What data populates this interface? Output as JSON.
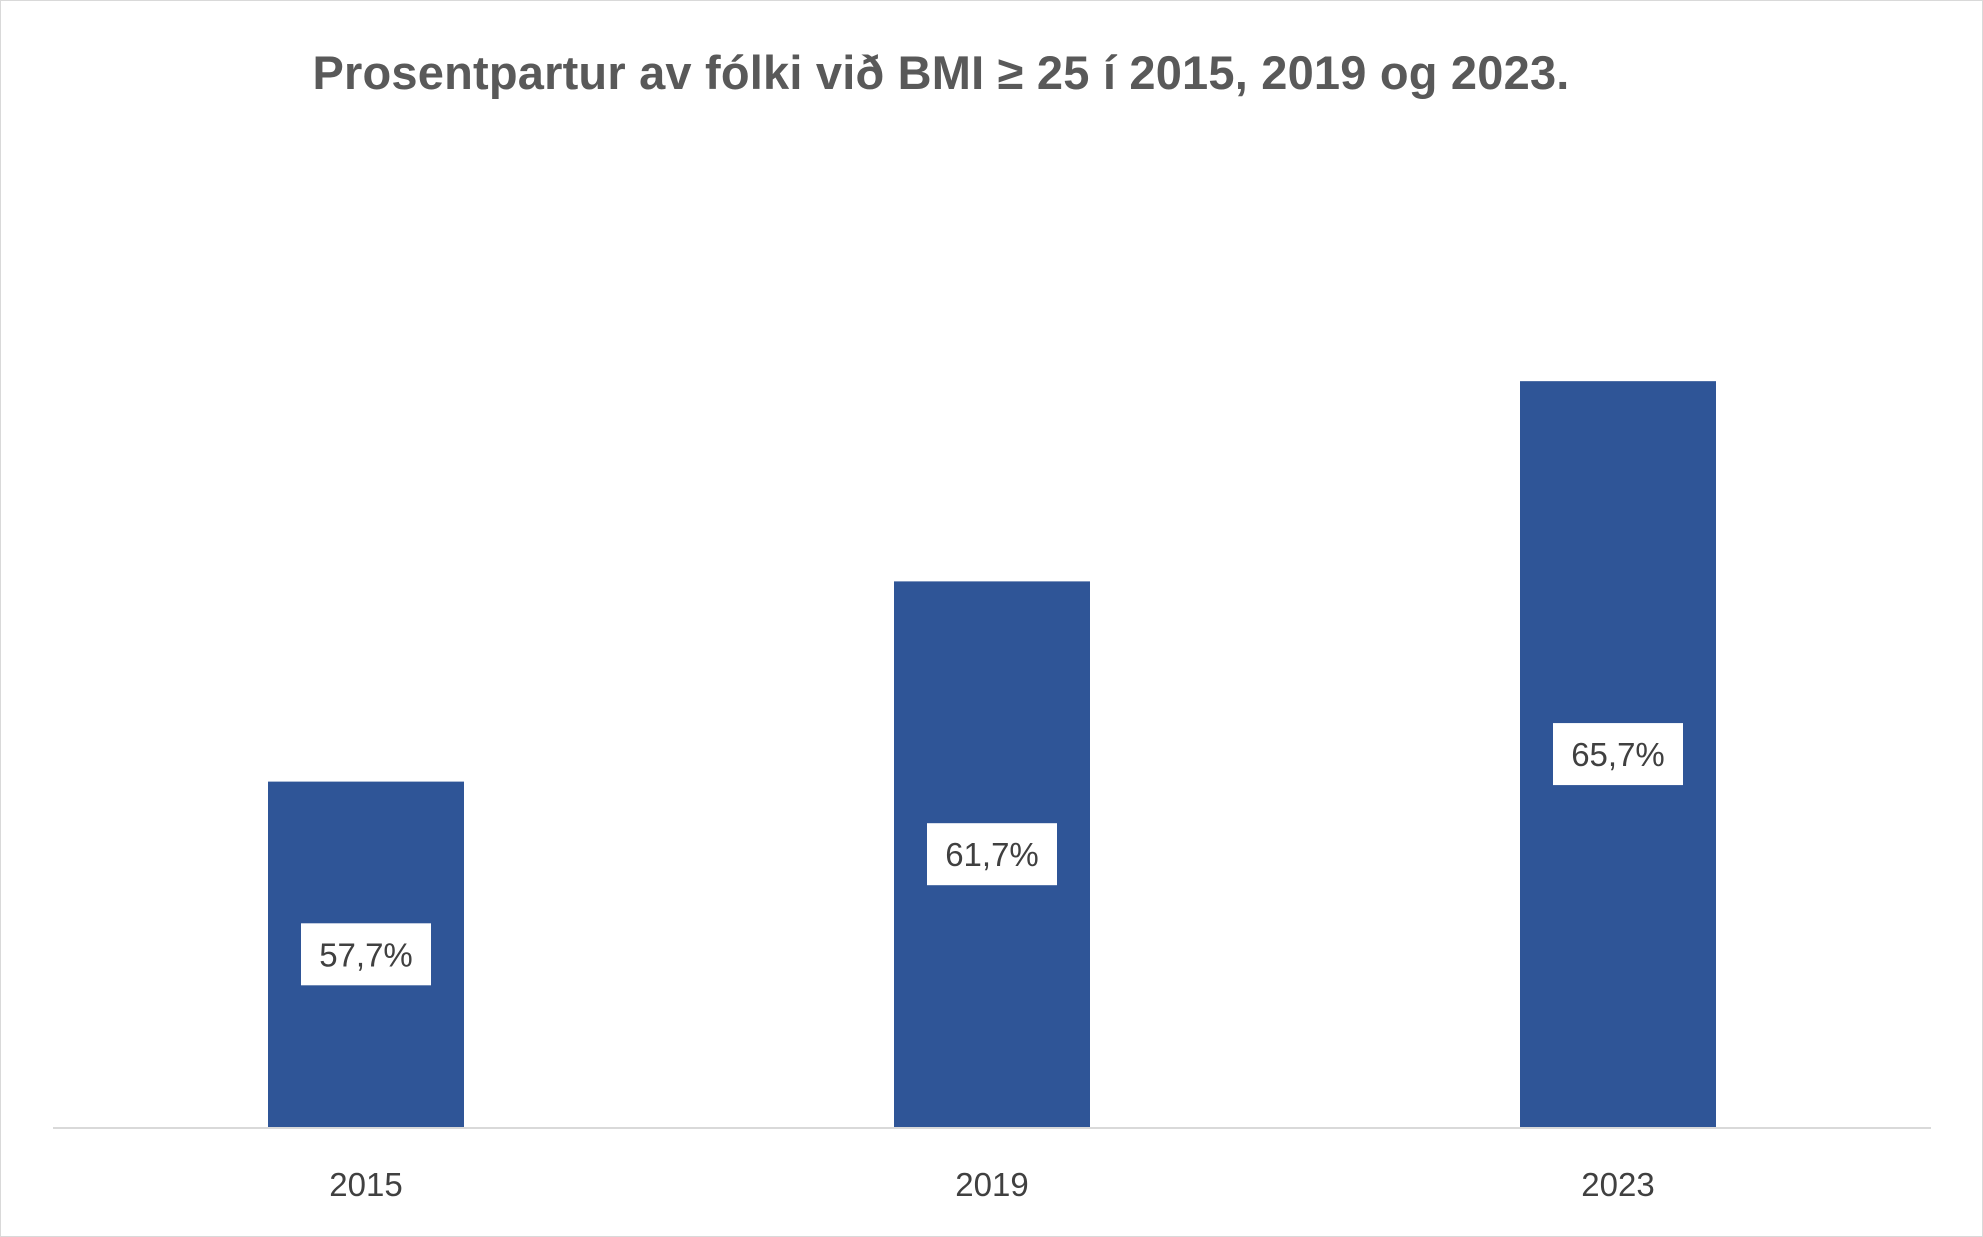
{
  "chart_data": {
    "type": "bar",
    "title": "Prosentpartur av fólki við BMI ≥ 25 í 2015, 2019 og 2023.",
    "xlabel": "",
    "ylabel": "",
    "categories": [
      "2015",
      "2019",
      "2023"
    ],
    "values": [
      57.7,
      61.7,
      65.7
    ],
    "data_labels": [
      "57,7%",
      "61,7%",
      "65,7%"
    ],
    "value_unit": "%",
    "ylim": [
      50.8,
      68.5
    ],
    "grid": false,
    "legend": "none",
    "colors": {
      "bar": "#2F5597",
      "label_box": "#FFFFFF",
      "label_text": "#404040",
      "axis_line": "#D9D9D9",
      "title": "#595959"
    }
  }
}
